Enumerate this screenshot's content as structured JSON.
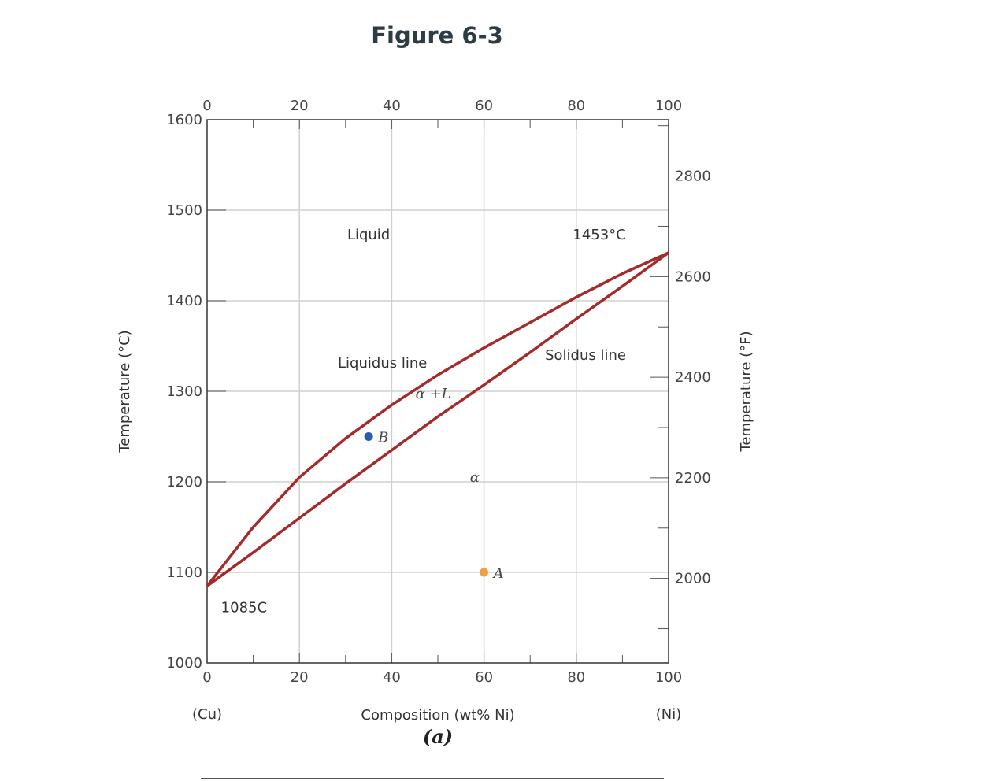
{
  "figure": {
    "title": "Figure 6-3",
    "sublabel": "(a)"
  },
  "chart_data": {
    "type": "line",
    "title": "",
    "xlabel": "Composition (wt% Ni)",
    "ylabel": "Temperature (°C)",
    "y2label": "Temperature (°F)",
    "xlim": [
      0,
      100
    ],
    "ylim": [
      1000,
      1600
    ],
    "grid": true,
    "x_ticks": [
      0,
      20,
      40,
      60,
      80,
      100
    ],
    "y_ticks": [
      1000,
      1100,
      1200,
      1300,
      1400,
      1500,
      1600
    ],
    "y2_ticks": [
      2000,
      2200,
      2400,
      2600,
      2800
    ],
    "end_labels": {
      "left": "(Cu)",
      "right": "(Ni)"
    },
    "colors": {
      "curve": "#a52a2a",
      "grid": "#d0d0d0",
      "point_A": "#f0a040",
      "point_B": "#2a5da8"
    },
    "series": [
      {
        "name": "Liquidus line",
        "x": [
          0,
          10,
          20,
          30,
          40,
          50,
          60,
          70,
          80,
          90,
          100
        ],
        "y": [
          1085,
          1150,
          1205,
          1248,
          1285,
          1318,
          1348,
          1376,
          1404,
          1430,
          1453
        ]
      },
      {
        "name": "Solidus line",
        "x": [
          0,
          10,
          20,
          30,
          40,
          50,
          60,
          70,
          80,
          90,
          100
        ],
        "y": [
          1085,
          1122,
          1160,
          1198,
          1235,
          1272,
          1307,
          1343,
          1380,
          1416,
          1453
        ]
      }
    ],
    "points": [
      {
        "label": "A",
        "x": 60,
        "y": 1100,
        "color": "#f0a040"
      },
      {
        "label": "B",
        "x": 35,
        "y": 1250,
        "color": "#2a5da8"
      }
    ],
    "annotations": [
      {
        "text": "Liquid",
        "x": 35,
        "y": 1468
      },
      {
        "text": "1453°C",
        "x": 85,
        "y": 1468
      },
      {
        "text": "Liquidus line",
        "x": 38,
        "y": 1326
      },
      {
        "text": "Solidus line",
        "x": 82,
        "y": 1335
      },
      {
        "text": "α +L",
        "x": 49,
        "y": 1292
      },
      {
        "text": "α",
        "x": 58,
        "y": 1200
      },
      {
        "text": "1085C",
        "x": 8,
        "y": 1056
      }
    ]
  }
}
